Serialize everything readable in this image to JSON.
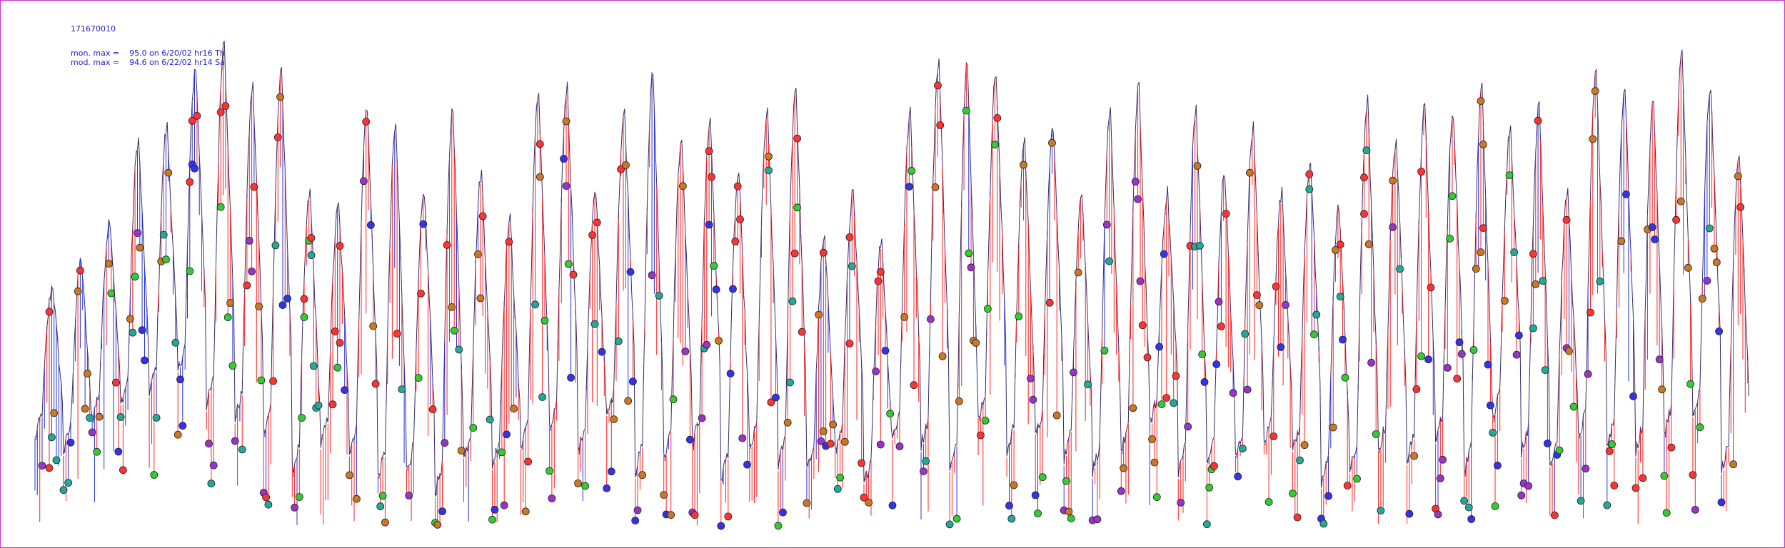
{
  "header": {
    "station_id": "171670010",
    "mon_max_line": "mon. max =    95.0 on 6/20/02 hr16 Th",
    "mod_max_line": "mod. max =    94.6 on 6/22/02 hr14 Sa"
  },
  "chart_data": {
    "type": "line",
    "title": "171670010",
    "xlabel": "",
    "ylabel": "",
    "ylim": [
      20,
      100
    ],
    "grid": false,
    "series": [
      {
        "line_color": "#ff2222"
      },
      {
        "line_color": "#2233dd"
      }
    ],
    "point_colors": [
      "#ff3333",
      "#33cc33",
      "#3333ee",
      "#9933cc",
      "#22aa99",
      "#cc7722"
    ],
    "monitor_max": {
      "value": 95.0,
      "date": "6/20/02",
      "hour": 16,
      "weekday": "Th"
    },
    "model_max": {
      "value": 94.6,
      "date": "6/22/02",
      "hour": 14,
      "weekday": "Sa"
    },
    "n_days": 60,
    "daily_peaks": [
      58,
      62,
      68,
      80,
      82,
      91,
      95,
      88,
      90,
      72,
      70,
      85,
      82,
      72,
      85,
      75,
      68,
      87,
      88,
      72,
      84,
      90,
      80,
      83,
      75,
      84,
      88,
      65,
      72,
      65,
      84,
      92,
      92,
      90,
      80,
      82,
      72,
      84,
      88,
      72,
      85,
      75,
      82,
      72,
      77,
      70,
      86,
      80,
      85,
      84,
      88,
      82,
      85,
      72,
      90,
      88,
      86,
      93,
      88,
      78
    ],
    "daily_lows": [
      35,
      33,
      38,
      40,
      42,
      45,
      40,
      38,
      36,
      30,
      34,
      33,
      29,
      30,
      27,
      32,
      31,
      34,
      36,
      33,
      38,
      30,
      32,
      34,
      29,
      33,
      31,
      30,
      33,
      28,
      35,
      34,
      30,
      38,
      33,
      35,
      32,
      30,
      33,
      37,
      30,
      31,
      32,
      34,
      33,
      28,
      30,
      33,
      32,
      35,
      30,
      38,
      33,
      31,
      35,
      34,
      33,
      36,
      38,
      30
    ]
  }
}
